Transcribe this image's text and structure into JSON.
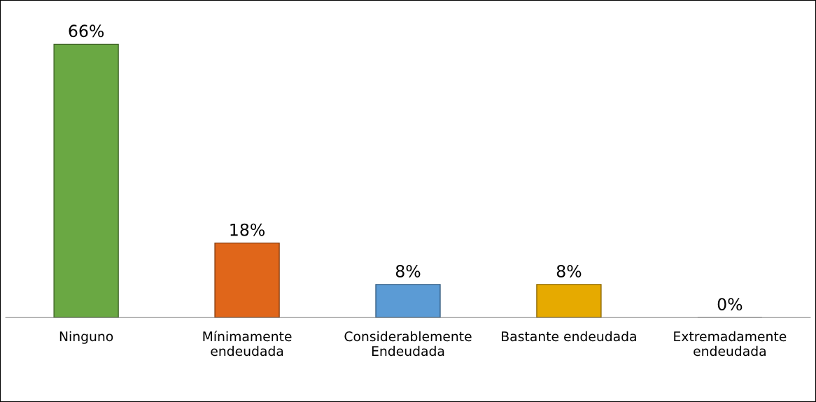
{
  "chart_data": {
    "type": "bar",
    "categories": [
      "Ninguno",
      "Mínimamente endeudada",
      "Considerablemente Endeudada",
      "Bastante endeudada",
      "Extremadamente endeudada"
    ],
    "values": [
      66,
      18,
      8,
      8,
      0
    ],
    "value_labels": [
      "66%",
      "18%",
      "8%",
      "8%",
      "0%"
    ],
    "colors": [
      "#6aa843",
      "#e0661a",
      "#5b9bd5",
      "#e6aa00",
      "#a5a5a5"
    ],
    "grid": false,
    "legend": false
  }
}
